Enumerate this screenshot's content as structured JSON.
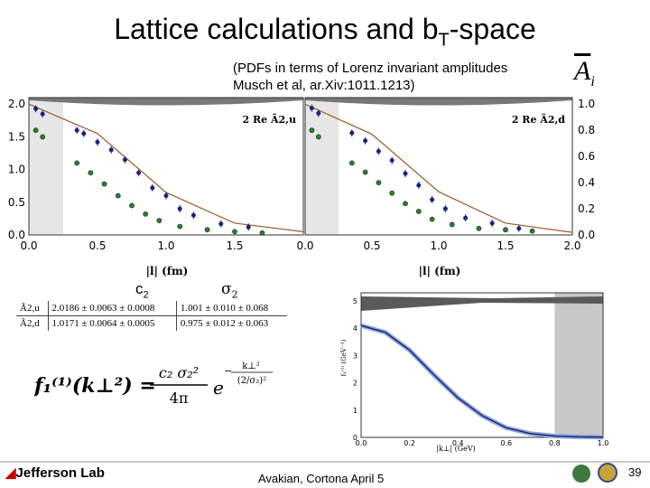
{
  "header": {
    "title_main": "Lattice calculations and b",
    "title_sub": "T",
    "title_tail": "-space",
    "subtitle_line1": "(PDFs in terms of Lorenz invariant amplitudes",
    "subtitle_line2_a": "Musch et al, ",
    "subtitle_line2_b": "ar.Xiv:1011.1213)",
    "amplitude_symbol": "A",
    "amplitude_index": "i"
  },
  "top_plots": {
    "xlabel": "|l| (fm)",
    "left": {
      "legend": "2 Re Ã2,u",
      "y_ticks": [
        "2.0",
        "1.5",
        "1.0",
        "0.5",
        "0.0"
      ],
      "x_ticks": [
        "0.0",
        "0.5",
        "1.0",
        "1.5"
      ]
    },
    "right": {
      "legend": "2 Re Ã2,d",
      "y_ticks": [
        "1.0",
        "0.8",
        "0.6",
        "0.4",
        "0.2",
        "0.0"
      ],
      "x_ticks": [
        "0.0",
        "0.5",
        "1.0",
        "1.5",
        "2.0"
      ]
    }
  },
  "params": {
    "c_label": "c",
    "c_sub": "2",
    "sigma_label": "σ",
    "sigma_sub": "2",
    "rows": [
      {
        "name": "Ã2,u",
        "c": "2.0186 ± 0.0063 ± 0.0008",
        "sigma": "1.001 ± 0.010 ± 0.068"
      },
      {
        "name": "Ã2,d",
        "c": "1.0171 ± 0.0064 ± 0.0005",
        "sigma": "0.975 ± 0.012 ± 0.063"
      }
    ]
  },
  "formula": {
    "lhs": "f₁⁽¹⁾(k⊥²) =",
    "num": "c₂ σ₂²",
    "den": "4π",
    "base": "e",
    "exp_num": "k⊥²",
    "exp_den": "(2/σ₂)²",
    "minus": "−"
  },
  "bottom_plot": {
    "ylabel": "f₁⁽¹⁾ (GeV⁻²)",
    "xlabel": "|k⊥|  (GeV)",
    "y_ticks": [
      "5",
      "4",
      "3",
      "2",
      "1",
      "0"
    ],
    "x_ticks": [
      "0.0",
      "0.2",
      "0.4",
      "0.6",
      "0.8",
      "1.0"
    ]
  },
  "footer": {
    "logo_a": "Jefferson",
    "logo_b": " Lab",
    "author": "Avakian, Cortona  April 5",
    "page": "39"
  },
  "chart_data": [
    {
      "type": "scatter",
      "title": "2 Re Ã2,u",
      "xlabel": "|l| (fm)",
      "ylabel": "",
      "xlim": [
        0,
        2.0
      ],
      "ylim": [
        0,
        2.1
      ],
      "series": [
        {
          "name": "upper (blue)",
          "x": [
            0.05,
            0.1,
            0.35,
            0.4,
            0.5,
            0.6,
            0.7,
            0.8,
            0.9,
            1.0,
            1.1,
            1.2,
            1.4,
            1.6
          ],
          "y": [
            1.93,
            1.85,
            1.6,
            1.55,
            1.42,
            1.3,
            1.15,
            0.95,
            0.72,
            0.6,
            0.4,
            0.3,
            0.17,
            0.12
          ]
        },
        {
          "name": "lower (green)",
          "x": [
            0.05,
            0.1,
            0.35,
            0.45,
            0.55,
            0.65,
            0.75,
            0.85,
            0.95,
            1.1,
            1.3,
            1.5,
            1.7
          ],
          "y": [
            1.6,
            1.5,
            1.1,
            0.95,
            0.78,
            0.6,
            0.45,
            0.32,
            0.22,
            0.13,
            0.08,
            0.05,
            0.03
          ]
        },
        {
          "name": "fit",
          "x": [
            0,
            0.5,
            1.0,
            1.5,
            2.0
          ],
          "y": [
            2.0,
            1.55,
            0.65,
            0.18,
            0.05
          ]
        }
      ]
    },
    {
      "type": "scatter",
      "title": "2 Re Ã2,d",
      "xlabel": "|l| (fm)",
      "ylabel": "",
      "xlim": [
        0,
        2.0
      ],
      "ylim": [
        0,
        1.05
      ],
      "series": [
        {
          "name": "upper (blue)",
          "x": [
            0.05,
            0.1,
            0.35,
            0.45,
            0.55,
            0.65,
            0.75,
            0.85,
            0.95,
            1.05,
            1.2,
            1.4,
            1.6
          ],
          "y": [
            0.97,
            0.93,
            0.78,
            0.72,
            0.64,
            0.57,
            0.47,
            0.38,
            0.27,
            0.2,
            0.13,
            0.09,
            0.05
          ]
        },
        {
          "name": "lower (green)",
          "x": [
            0.05,
            0.1,
            0.35,
            0.45,
            0.55,
            0.65,
            0.75,
            0.85,
            0.95,
            1.1,
            1.3,
            1.5,
            1.7
          ],
          "y": [
            0.8,
            0.75,
            0.55,
            0.48,
            0.4,
            0.32,
            0.24,
            0.18,
            0.12,
            0.08,
            0.05,
            0.04,
            0.03
          ]
        },
        {
          "name": "fit",
          "x": [
            0,
            0.5,
            1.0,
            1.5,
            2.0
          ],
          "y": [
            1.0,
            0.77,
            0.33,
            0.09,
            0.02
          ]
        }
      ]
    },
    {
      "type": "line",
      "title": "",
      "xlabel": "|k⊥| (GeV)",
      "ylabel": "f₁⁽¹⁾ (GeV⁻²)",
      "xlim": [
        0,
        1.0
      ],
      "ylim": [
        0,
        5.3
      ],
      "series": [
        {
          "name": "f1(1)",
          "x": [
            0,
            0.1,
            0.2,
            0.3,
            0.4,
            0.5,
            0.6,
            0.7,
            0.8,
            0.9,
            1.0
          ],
          "y": [
            4.1,
            3.85,
            3.2,
            2.3,
            1.45,
            0.8,
            0.35,
            0.14,
            0.05,
            0.02,
            0.01
          ]
        }
      ]
    }
  ]
}
